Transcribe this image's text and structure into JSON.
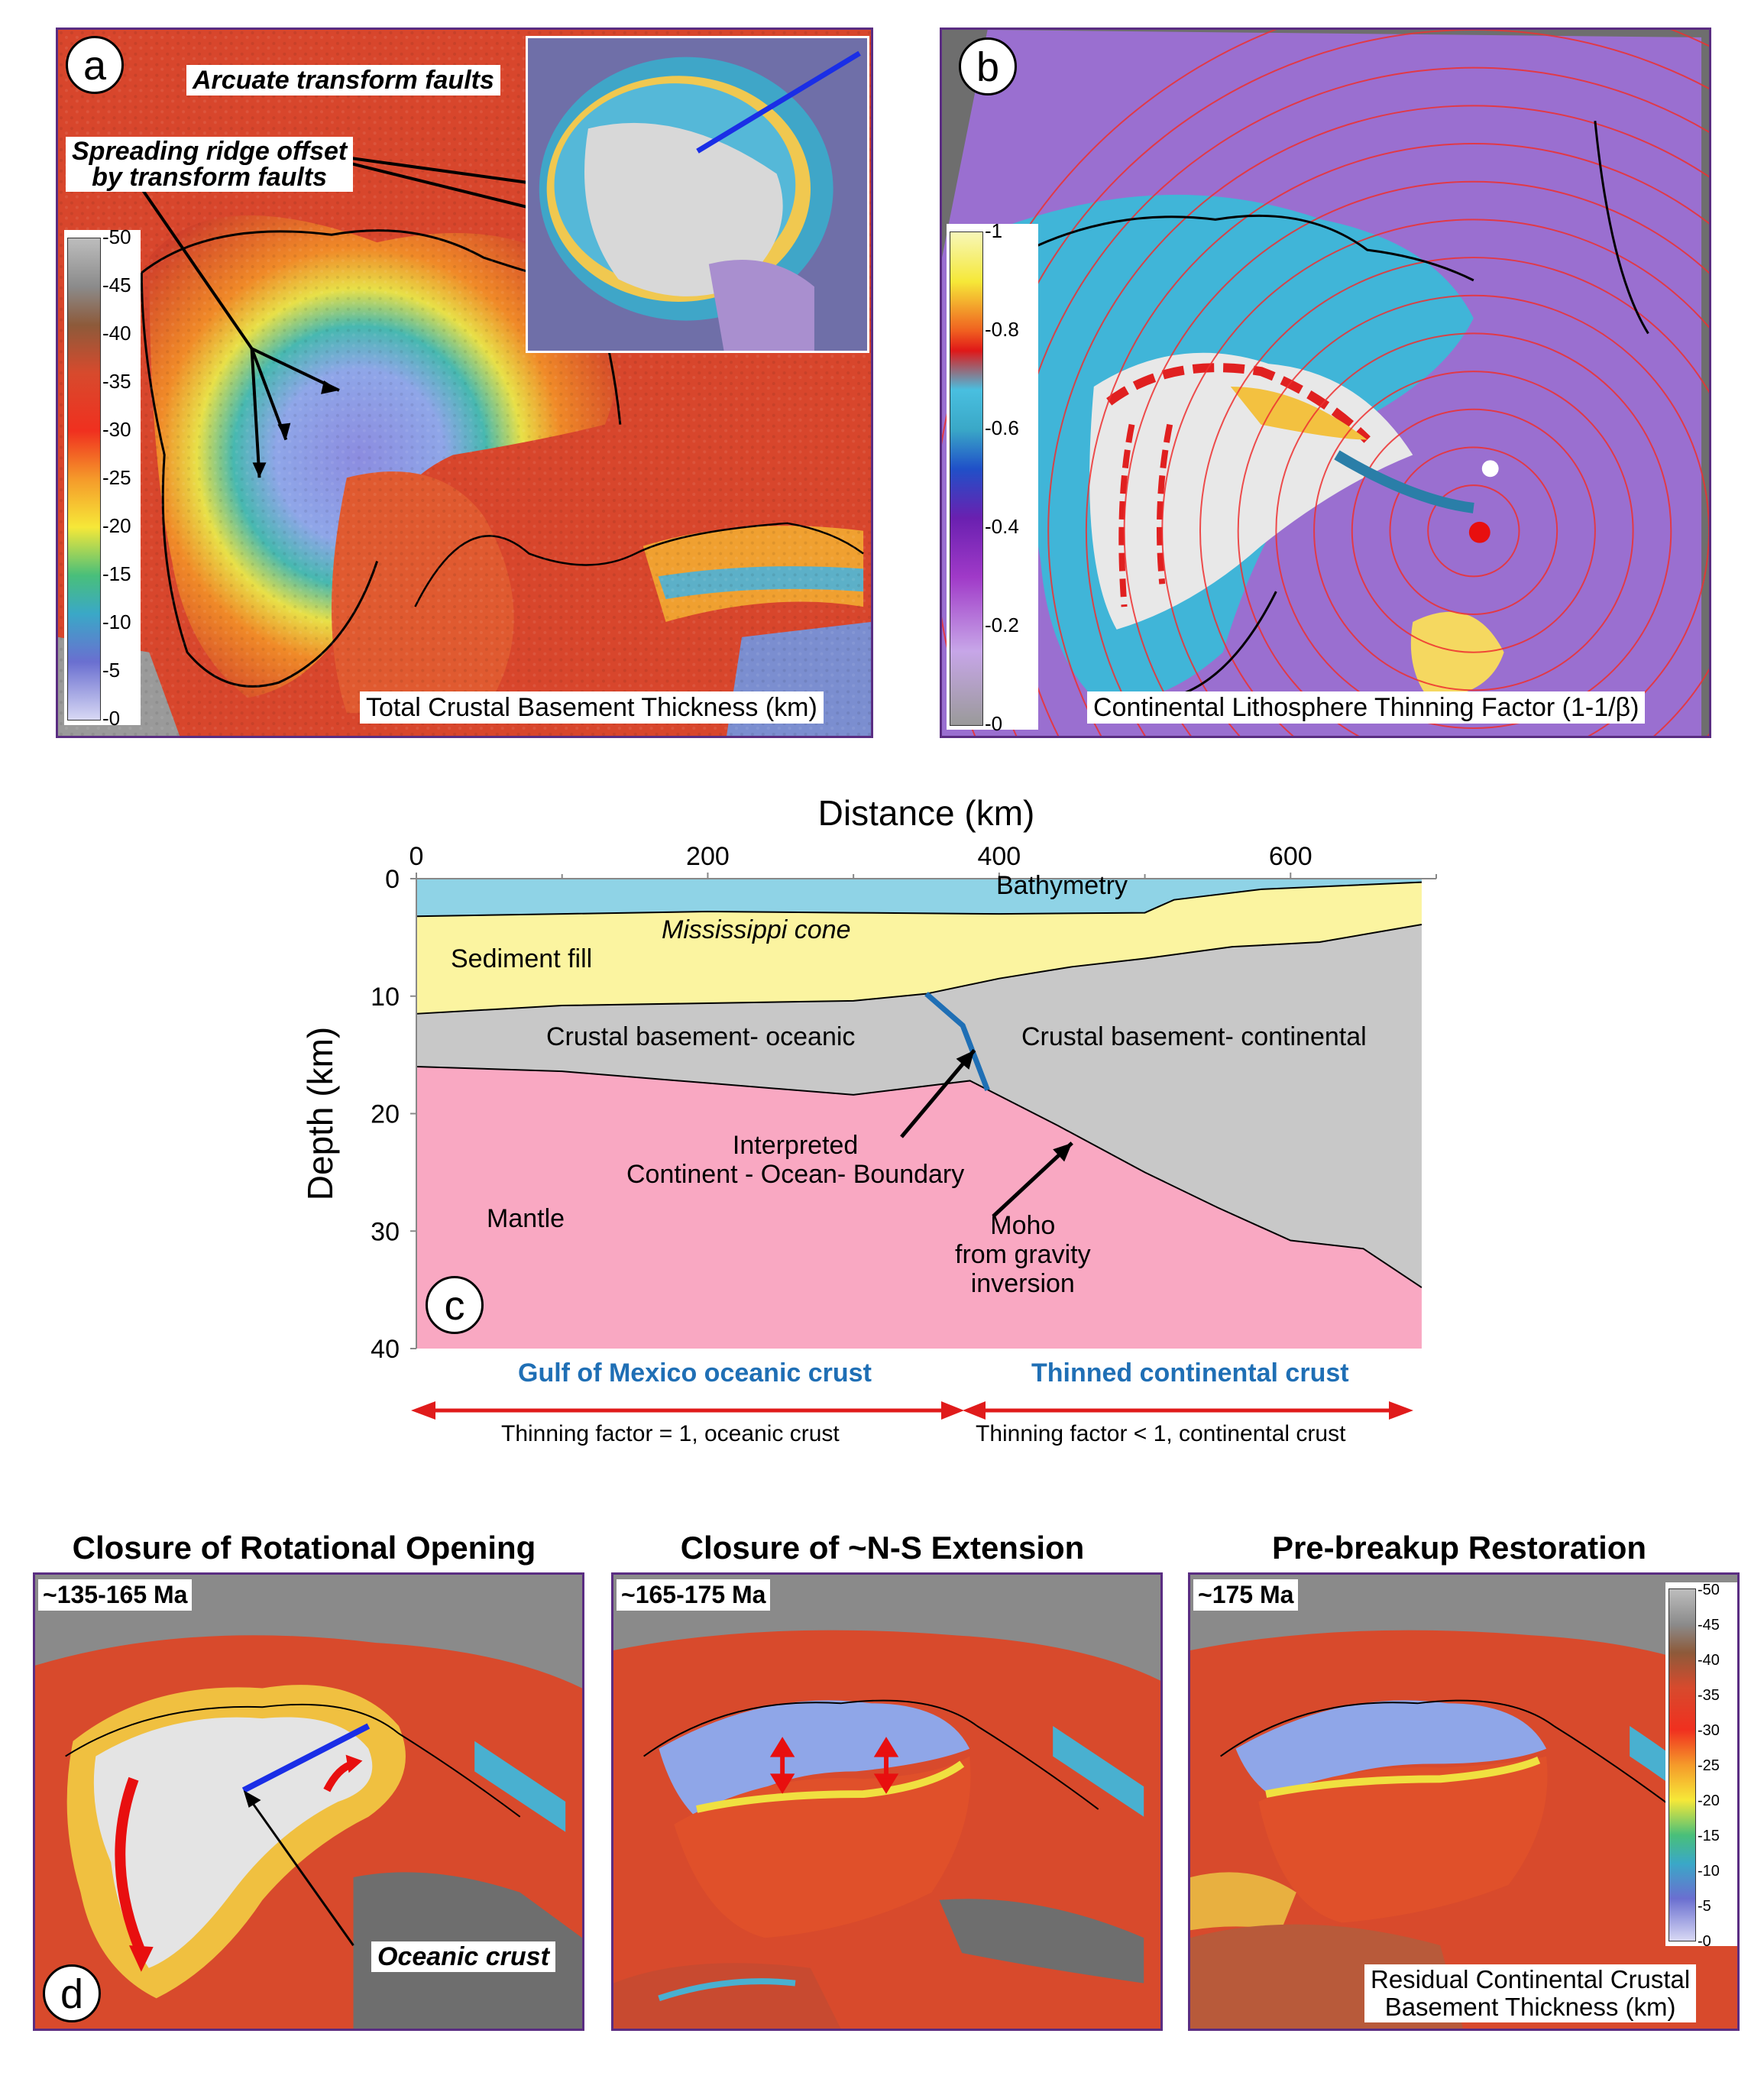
{
  "panel_a": {
    "letter": "a",
    "callout_arcuate": "Arcuate transform faults",
    "callout_spreading_line1": "Spreading ridge offset",
    "callout_spreading_line2": "by transform faults",
    "caption": "Total Crustal Basement Thickness (km)",
    "colorbar_ticks": [
      "50",
      "45",
      "40",
      "35",
      "30",
      "25",
      "20",
      "15",
      "10",
      "5",
      "0"
    ]
  },
  "panel_b": {
    "letter": "b",
    "caption": "Continental Lithosphere Thinning Factor (1-1/β)",
    "colorbar_ticks": [
      "1",
      "0.8",
      "0.6",
      "0.4",
      "0.2",
      "0"
    ]
  },
  "panel_c": {
    "letter": "c",
    "chart_data": {
      "type": "cross-section",
      "xlabel": "Distance (km)",
      "ylabel": "Depth (km)",
      "x_ticks": [
        "0",
        "200",
        "400",
        "600"
      ],
      "y_ticks": [
        "0",
        "10",
        "20",
        "30",
        "40"
      ],
      "xlim": [
        0,
        700
      ],
      "ylim": [
        0,
        40
      ],
      "layers": [
        {
          "name": "Bathymetry",
          "color": "#8fd3e6"
        },
        {
          "name": "Sediment fill",
          "color": "#fbf4a0"
        },
        {
          "name": "Crustal basement- oceanic",
          "color": "#c8c8c8"
        },
        {
          "name": "Crustal basement- continental",
          "color": "#c8c8c8"
        },
        {
          "name": "Mantle",
          "color": "#f9a8c2"
        }
      ],
      "seafloor_depth": [
        [
          0,
          3.2
        ],
        [
          100,
          3.0
        ],
        [
          200,
          2.8
        ],
        [
          300,
          2.9
        ],
        [
          400,
          3.0
        ],
        [
          500,
          2.9
        ],
        [
          520,
          1.8
        ],
        [
          580,
          0.9
        ],
        [
          690,
          0.3
        ]
      ],
      "basement_top_depth": [
        [
          0,
          11.5
        ],
        [
          100,
          10.8
        ],
        [
          200,
          10.6
        ],
        [
          300,
          10.4
        ],
        [
          350,
          9.8
        ],
        [
          400,
          8.5
        ],
        [
          450,
          7.5
        ],
        [
          500,
          6.8
        ],
        [
          560,
          5.8
        ],
        [
          620,
          5.4
        ],
        [
          690,
          3.9
        ]
      ],
      "moho_depth": [
        [
          0,
          16
        ],
        [
          100,
          16.4
        ],
        [
          200,
          17.4
        ],
        [
          300,
          18.4
        ],
        [
          380,
          17.2
        ],
        [
          440,
          21
        ],
        [
          500,
          25
        ],
        [
          550,
          28
        ],
        [
          600,
          30.8
        ],
        [
          650,
          31.5
        ],
        [
          690,
          34.8
        ]
      ],
      "cob_line": [
        [
          350,
          9.8
        ],
        [
          375,
          12.5
        ],
        [
          392,
          18
        ]
      ],
      "annotations": [
        "Mississippi cone",
        "Interpreted",
        "Continent - Ocean- Boundary",
        "Moho",
        "from gravity",
        "inversion"
      ]
    },
    "label_bathymetry": "Bathymetry",
    "label_cone": "Mississippi cone",
    "label_sediment": "Sediment fill",
    "label_oceanic": "Crustal basement- oceanic",
    "label_continental": "Crustal basement- continental",
    "label_mantle": "Mantle",
    "label_cob_1": "Interpreted",
    "label_cob_2": "Continent - Ocean- Boundary",
    "label_moho_1": "Moho",
    "label_moho_2": "from gravity",
    "label_moho_3": "inversion",
    "below_left_title": "Gulf of Mexico oceanic crust",
    "below_right_title": "Thinned continental crust",
    "below_left_note": "Thinning factor = 1, oceanic crust",
    "below_right_note": "Thinning factor < 1, continental crust"
  },
  "panel_d": {
    "letter": "d",
    "title_1": "Closure of Rotational Opening",
    "title_2": "Closure of ~N-S Extension",
    "title_3": "Pre-breakup Restoration",
    "age_1": "~135-165 Ma",
    "age_2": "~165-175 Ma",
    "age_3": "~175 Ma",
    "callout_oceanic": "Oceanic crust",
    "caption_line1": "Residual Continental Crustal",
    "caption_line2": "Basement Thickness (km)",
    "colorbar_ticks": [
      "50",
      "45",
      "40",
      "35",
      "30",
      "25",
      "20",
      "15",
      "10",
      "5",
      "0"
    ]
  },
  "colors": {
    "frame": "#5a2d82",
    "blue_text": "#1f6fb5",
    "red_arrow": "#e01b1b",
    "cob_line": "#1f6fb5",
    "profile_line": "#1a2ee6"
  }
}
